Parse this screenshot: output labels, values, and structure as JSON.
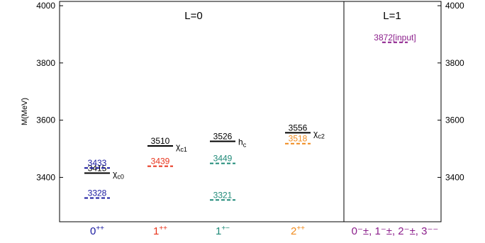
{
  "chart_data": {
    "type": "level-diagram",
    "ylabel": "M(MeV)",
    "ylim": [
      3245,
      4015
    ],
    "yticks": [
      3400,
      3600,
      3800,
      4000
    ],
    "panels": [
      {
        "title": "L=0",
        "x_range": [
          0,
          1
        ]
      },
      {
        "title": "L=1",
        "x_range": [
          1,
          1.39
        ]
      }
    ],
    "columns": [
      {
        "jpc": "0",
        "jpc_sup": "++",
        "color": "#1a1aa0",
        "panel": 0
      },
      {
        "jpc": "1",
        "jpc_sup": "++",
        "color": "#e8341c",
        "panel": 0
      },
      {
        "jpc": "1",
        "jpc_sup": "+−",
        "color": "#1f8a78",
        "panel": 0
      },
      {
        "jpc": "2",
        "jpc_sup": "++",
        "color": "#f08a1c",
        "panel": 0
      },
      {
        "jpc": "0⁻±, 1⁻±, 2⁻±, 3⁻⁻",
        "jpc_sup": "",
        "color": "#8b1e8b",
        "panel": 1
      }
    ],
    "experimental_levels": [
      {
        "column": 0,
        "mass": 3415,
        "label": "3415",
        "state": "χ",
        "state_sub": "c0"
      },
      {
        "column": 1,
        "mass": 3510,
        "label": "3510",
        "state": "χ",
        "state_sub": "c1"
      },
      {
        "column": 2,
        "mass": 3526,
        "label": "3526",
        "state": "h",
        "state_sub": "c"
      },
      {
        "column": 3,
        "mass": 3556,
        "label": "3556",
        "state": "χ",
        "state_sub": "c2"
      }
    ],
    "predicted_levels": [
      {
        "column": 0,
        "mass": 3433,
        "label": "3433"
      },
      {
        "column": 0,
        "mass": 3328,
        "label": "3328"
      },
      {
        "column": 1,
        "mass": 3439,
        "label": "3439"
      },
      {
        "column": 2,
        "mass": 3449,
        "label": "3449"
      },
      {
        "column": 2,
        "mass": 3321,
        "label": "3321"
      },
      {
        "column": 3,
        "mass": 3518,
        "label": "3518"
      },
      {
        "column": 4,
        "mass": 3872,
        "label": "3872[input]"
      }
    ]
  }
}
